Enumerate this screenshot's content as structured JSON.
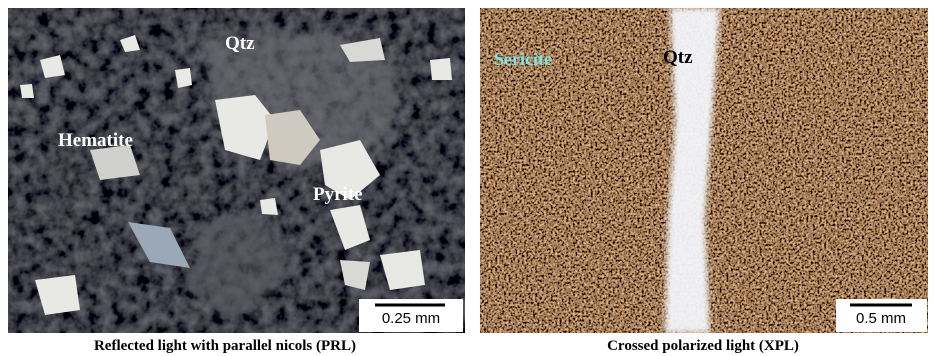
{
  "panels": [
    {
      "labels": [
        "Qtz",
        "Hematite",
        "Pyrite"
      ],
      "scale_bar": "0.25 mm",
      "caption": "Reflected light with parallel nicols (PRL)"
    },
    {
      "labels": [
        "Sericite",
        "Qtz"
      ],
      "scale_bar": "0.5 mm",
      "caption": "Crossed polarized light (XPL)"
    }
  ]
}
